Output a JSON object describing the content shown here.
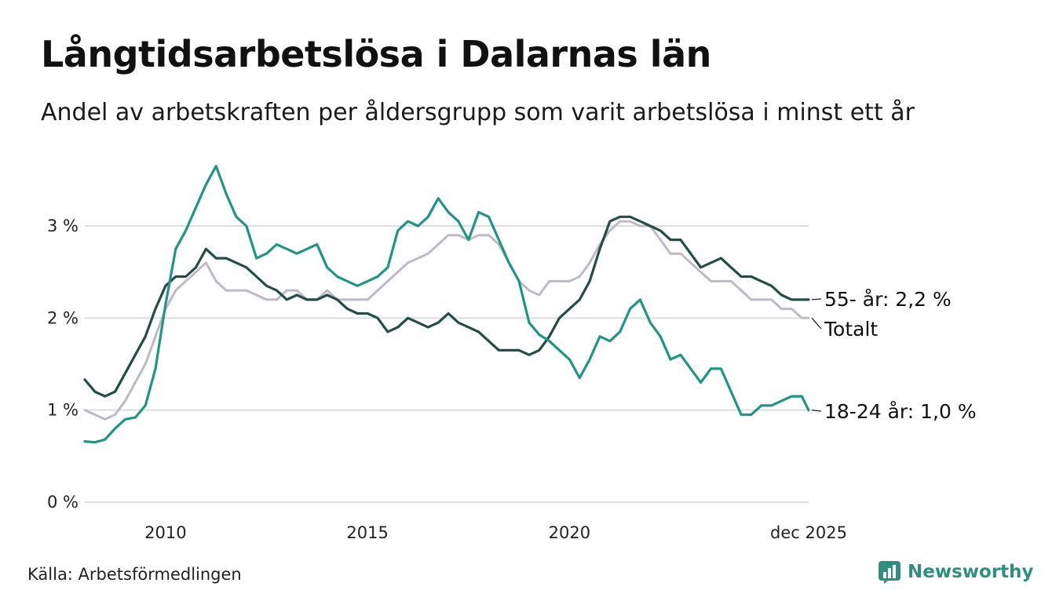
{
  "header": {
    "title": "Långtidsarbetslösa i Dalarnas län",
    "subtitle": "Andel av arbetskraften per åldersgrupp som varit arbetslösa i minst ett år"
  },
  "footer": {
    "source": "Källa: Arbetsförmedlingen",
    "brand": "Newsworthy"
  },
  "colors": {
    "total": "#bfb8c8",
    "older": "#234d47",
    "young": "#1f9585",
    "grid": "#dddddd",
    "brand": "#2f8f7f"
  },
  "chart_data": {
    "type": "line",
    "title": "Långtidsarbetslösa i Dalarnas län",
    "xlabel": "",
    "ylabel": "",
    "xlim": [
      2008.0,
      2025.92
    ],
    "ylim": [
      0,
      3.7
    ],
    "y_ticks": [
      0,
      1,
      2,
      3
    ],
    "y_tick_labels": [
      "0 %",
      "1 %",
      "2 %",
      "3 %"
    ],
    "x_ticks": [
      2010,
      2015,
      2020,
      2025.92
    ],
    "x_tick_labels": [
      "2010",
      "2015",
      "2020",
      "dec 2025"
    ],
    "grid": true,
    "series": [
      {
        "name": "Totalt",
        "key": "total",
        "end_label": "Totalt",
        "x": [
          2008.0,
          2008.25,
          2008.5,
          2008.75,
          2009.0,
          2009.25,
          2009.5,
          2009.75,
          2010.0,
          2010.25,
          2010.5,
          2010.75,
          2011.0,
          2011.25,
          2011.5,
          2011.75,
          2012.0,
          2012.25,
          2012.5,
          2012.75,
          2013.0,
          2013.25,
          2013.5,
          2013.75,
          2014.0,
          2014.25,
          2014.5,
          2014.75,
          2015.0,
          2015.25,
          2015.5,
          2015.75,
          2016.0,
          2016.25,
          2016.5,
          2016.75,
          2017.0,
          2017.25,
          2017.5,
          2017.75,
          2018.0,
          2018.25,
          2018.5,
          2018.75,
          2019.0,
          2019.25,
          2019.5,
          2019.75,
          2020.0,
          2020.25,
          2020.5,
          2020.75,
          2021.0,
          2021.25,
          2021.5,
          2021.75,
          2022.0,
          2022.25,
          2022.5,
          2022.75,
          2023.0,
          2023.25,
          2023.5,
          2023.75,
          2024.0,
          2024.25,
          2024.5,
          2024.75,
          2025.0,
          2025.25,
          2025.5,
          2025.75,
          2025.92
        ],
        "values": [
          1.0,
          0.95,
          0.9,
          0.95,
          1.1,
          1.3,
          1.5,
          1.8,
          2.1,
          2.3,
          2.4,
          2.5,
          2.6,
          2.4,
          2.3,
          2.3,
          2.3,
          2.25,
          2.2,
          2.2,
          2.3,
          2.3,
          2.2,
          2.2,
          2.3,
          2.2,
          2.2,
          2.2,
          2.2,
          2.3,
          2.4,
          2.5,
          2.6,
          2.65,
          2.7,
          2.8,
          2.9,
          2.9,
          2.85,
          2.9,
          2.9,
          2.8,
          2.6,
          2.4,
          2.3,
          2.25,
          2.4,
          2.4,
          2.4,
          2.45,
          2.6,
          2.8,
          2.95,
          3.05,
          3.05,
          3.0,
          3.0,
          2.85,
          2.7,
          2.7,
          2.6,
          2.5,
          2.4,
          2.4,
          2.4,
          2.3,
          2.2,
          2.2,
          2.2,
          2.1,
          2.1,
          2.0,
          2.0
        ]
      },
      {
        "name": "55- år",
        "key": "older",
        "end_label": "55- år: 2,2 %",
        "x": [
          2008.0,
          2008.25,
          2008.5,
          2008.75,
          2009.0,
          2009.25,
          2009.5,
          2009.75,
          2010.0,
          2010.25,
          2010.5,
          2010.75,
          2011.0,
          2011.25,
          2011.5,
          2011.75,
          2012.0,
          2012.25,
          2012.5,
          2012.75,
          2013.0,
          2013.25,
          2013.5,
          2013.75,
          2014.0,
          2014.25,
          2014.5,
          2014.75,
          2015.0,
          2015.25,
          2015.5,
          2015.75,
          2016.0,
          2016.25,
          2016.5,
          2016.75,
          2017.0,
          2017.25,
          2017.5,
          2017.75,
          2018.0,
          2018.25,
          2018.5,
          2018.75,
          2019.0,
          2019.25,
          2019.5,
          2019.75,
          2020.0,
          2020.25,
          2020.5,
          2020.75,
          2021.0,
          2021.25,
          2021.5,
          2021.75,
          2022.0,
          2022.25,
          2022.5,
          2022.75,
          2023.0,
          2023.25,
          2023.5,
          2023.75,
          2024.0,
          2024.25,
          2024.5,
          2024.75,
          2025.0,
          2025.25,
          2025.5,
          2025.75,
          2025.92
        ],
        "values": [
          1.33,
          1.2,
          1.15,
          1.2,
          1.4,
          1.6,
          1.8,
          2.1,
          2.35,
          2.45,
          2.45,
          2.55,
          2.75,
          2.65,
          2.65,
          2.6,
          2.55,
          2.45,
          2.35,
          2.3,
          2.2,
          2.25,
          2.2,
          2.2,
          2.25,
          2.2,
          2.1,
          2.05,
          2.05,
          2.0,
          1.85,
          1.9,
          2.0,
          1.95,
          1.9,
          1.95,
          2.05,
          1.95,
          1.9,
          1.85,
          1.75,
          1.65,
          1.65,
          1.65,
          1.6,
          1.65,
          1.8,
          2.0,
          2.1,
          2.2,
          2.4,
          2.75,
          3.05,
          3.1,
          3.1,
          3.05,
          3.0,
          2.95,
          2.85,
          2.85,
          2.7,
          2.55,
          2.6,
          2.65,
          2.55,
          2.45,
          2.45,
          2.4,
          2.35,
          2.25,
          2.2,
          2.2,
          2.2
        ]
      },
      {
        "name": "18-24 år",
        "key": "young",
        "end_label": "18-24 år: 1,0 %",
        "x": [
          2008.0,
          2008.25,
          2008.5,
          2008.75,
          2009.0,
          2009.25,
          2009.5,
          2009.75,
          2010.0,
          2010.25,
          2010.5,
          2010.75,
          2011.0,
          2011.25,
          2011.5,
          2011.75,
          2012.0,
          2012.25,
          2012.5,
          2012.75,
          2013.0,
          2013.25,
          2013.5,
          2013.75,
          2014.0,
          2014.25,
          2014.5,
          2014.75,
          2015.0,
          2015.25,
          2015.5,
          2015.75,
          2016.0,
          2016.25,
          2016.5,
          2016.75,
          2017.0,
          2017.25,
          2017.5,
          2017.75,
          2018.0,
          2018.25,
          2018.5,
          2018.75,
          2019.0,
          2019.25,
          2019.5,
          2019.75,
          2020.0,
          2020.25,
          2020.5,
          2020.75,
          2021.0,
          2021.25,
          2021.5,
          2021.75,
          2022.0,
          2022.25,
          2022.5,
          2022.75,
          2023.0,
          2023.25,
          2023.5,
          2023.75,
          2024.0,
          2024.25,
          2024.5,
          2024.75,
          2025.0,
          2025.25,
          2025.5,
          2025.75,
          2025.92
        ],
        "values": [
          0.66,
          0.65,
          0.68,
          0.8,
          0.9,
          0.92,
          1.05,
          1.45,
          2.15,
          2.75,
          2.95,
          3.2,
          3.45,
          3.65,
          3.35,
          3.1,
          3.0,
          2.65,
          2.7,
          2.8,
          2.75,
          2.7,
          2.75,
          2.8,
          2.55,
          2.45,
          2.4,
          2.35,
          2.4,
          2.45,
          2.55,
          2.95,
          3.05,
          3.0,
          3.1,
          3.3,
          3.15,
          3.05,
          2.85,
          3.15,
          3.1,
          2.85,
          2.6,
          2.4,
          1.95,
          1.82,
          1.75,
          1.65,
          1.55,
          1.35,
          1.55,
          1.8,
          1.75,
          1.85,
          2.1,
          2.2,
          1.95,
          1.8,
          1.55,
          1.6,
          1.45,
          1.3,
          1.45,
          1.45,
          1.2,
          0.95,
          0.95,
          1.05,
          1.05,
          1.1,
          1.15,
          1.15,
          1.0
        ]
      }
    ]
  }
}
